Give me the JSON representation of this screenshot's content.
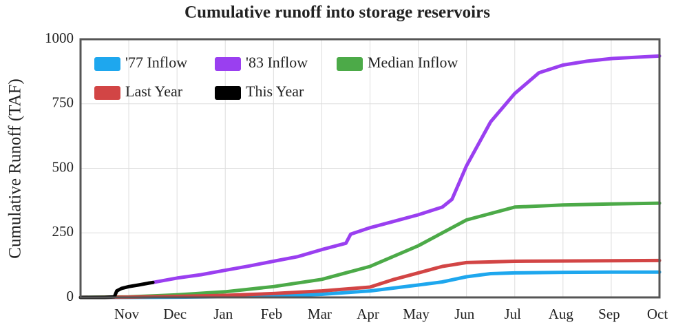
{
  "chart_data": {
    "type": "line",
    "title": "Cumulative runoff into storage reservoirs",
    "y_label": "Cumulative Runoff (TAF)",
    "xlim": [
      0,
      12
    ],
    "xticks": [
      {
        "value": 1,
        "label": "Nov"
      },
      {
        "value": 2,
        "label": "Dec"
      },
      {
        "value": 3,
        "label": "Jan"
      },
      {
        "value": 4,
        "label": "Feb"
      },
      {
        "value": 5,
        "label": "Mar"
      },
      {
        "value": 6,
        "label": "Apr"
      },
      {
        "value": 7,
        "label": "May"
      },
      {
        "value": 8,
        "label": "Jun"
      },
      {
        "value": 9,
        "label": "Jul"
      },
      {
        "value": 10,
        "label": "Aug"
      },
      {
        "value": 11,
        "label": "Sep"
      },
      {
        "value": 12,
        "label": "Oct"
      }
    ],
    "ylim": [
      0,
      1000
    ],
    "yticks": [
      0,
      250,
      500,
      750,
      1000
    ],
    "grid": true,
    "legend": "upper left",
    "series": [
      {
        "name": "'77 Inflow",
        "color": "#1ea7ee",
        "x": [
          0,
          1,
          2,
          3,
          4,
          5,
          6,
          7,
          7.5,
          8,
          8.5,
          9,
          10,
          11,
          12
        ],
        "values": [
          0,
          0,
          1,
          3,
          6,
          12,
          25,
          48,
          60,
          80,
          92,
          95,
          97,
          98,
          98
        ]
      },
      {
        "name": "'83 Inflow",
        "color": "#9a3ff0",
        "x": [
          1.5,
          2,
          2.5,
          3,
          3.5,
          4,
          4.5,
          5,
          5.5,
          5.6,
          6,
          6.5,
          7,
          7.5,
          7.7,
          8,
          8.5,
          9,
          9.5,
          10,
          10.5,
          11,
          12
        ],
        "values": [
          58,
          75,
          88,
          105,
          122,
          140,
          158,
          185,
          210,
          245,
          270,
          295,
          320,
          350,
          380,
          510,
          680,
          790,
          870,
          900,
          915,
          925,
          935
        ]
      },
      {
        "name": "Median Inflow",
        "color": "#4caa48",
        "x": [
          0,
          1,
          2,
          3,
          4,
          5,
          6,
          7,
          8,
          9,
          10,
          11,
          12
        ],
        "values": [
          0,
          2,
          10,
          22,
          42,
          70,
          120,
          200,
          300,
          350,
          358,
          362,
          365
        ]
      },
      {
        "name": "Last Year",
        "color": "#d24545",
        "x": [
          0,
          1,
          2,
          3,
          4,
          5,
          6,
          6.5,
          7,
          7.5,
          8,
          9,
          10,
          11,
          12
        ],
        "values": [
          0,
          1,
          4,
          8,
          15,
          25,
          40,
          70,
          95,
          120,
          135,
          140,
          141,
          142,
          143
        ]
      },
      {
        "name": "This Year",
        "color": "#000000",
        "x": [
          0,
          0.25,
          0.5,
          0.7,
          0.75,
          0.85,
          1,
          1.2,
          1.4,
          1.5
        ],
        "values": [
          0,
          0,
          0,
          2,
          25,
          35,
          42,
          48,
          55,
          58
        ]
      }
    ]
  }
}
